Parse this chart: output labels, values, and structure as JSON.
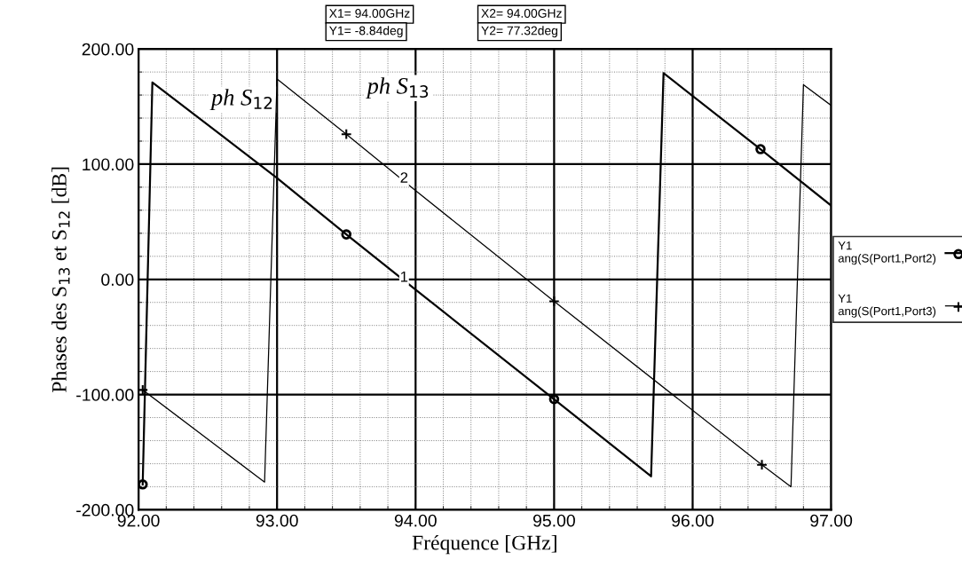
{
  "chart_data": {
    "type": "line",
    "xlabel": "Fréquence [GHz]",
    "ylabel": "Phases des S$_{13}$ et S$_{12}$ [dB]",
    "series": [
      {
        "name": "Y1\nang(S(Port1,Port2)",
        "color": "#000000",
        "x": [
          92.03,
          92.1,
          93.0,
          93.5,
          94.0,
          95.0,
          95.7,
          95.79,
          96.49,
          97.0
        ],
        "values": [
          -178,
          171,
          88,
          39,
          -9,
          -104,
          -171,
          179,
          113,
          64
        ]
      },
      {
        "type": "scatter",
        "marker": "circle",
        "color": "#000000",
        "x": [
          92.03,
          93.5,
          95.0,
          96.49
        ],
        "values": [
          -178,
          39,
          -104,
          113
        ]
      },
      {
        "name": "Y1\nang(S(Port1,Port3)",
        "color": "#000000",
        "x": [
          92.03,
          92.91,
          93.0,
          93.5,
          94.0,
          95.0,
          96.5,
          96.71,
          96.8,
          97.0
        ],
        "values": [
          -96,
          -176,
          174,
          126,
          77,
          -19,
          -161,
          -180,
          169,
          151
        ]
      },
      {
        "type": "scatter",
        "marker": "cross",
        "color": "#000000",
        "x": [
          92.03,
          93.5,
          95.0,
          96.5
        ],
        "values": [
          -96,
          126,
          -19,
          -161
        ]
      }
    ],
    "xlim": [
      92,
      97
    ],
    "ylim": [
      -200,
      200
    ],
    "xticks": [
      {
        "value": 92,
        "label": "92.00"
      },
      {
        "value": 93,
        "label": "93.00"
      },
      {
        "value": 94,
        "label": "94.00"
      },
      {
        "value": 95,
        "label": "95.00"
      },
      {
        "value": 96,
        "label": "96.00"
      },
      {
        "value": 97,
        "label": "97.00"
      }
    ],
    "yticks": [
      {
        "value": -200,
        "label": "-200.00"
      },
      {
        "value": -100,
        "label": "-100.00"
      },
      {
        "value": 0,
        "label": "0.00"
      },
      {
        "value": 100,
        "label": "100.00"
      },
      {
        "value": 200,
        "label": "200.00"
      }
    ],
    "grid": true,
    "legend": "right",
    "annotations": [
      "ph S$_{12}$",
      "ph S$_{13}$",
      {
        "text": "1",
        "x": 94.0,
        "y": -9
      },
      {
        "text": "2",
        "x": 94.0,
        "y": 77
      },
      "X1= 94.00GHz",
      "Y1= -8.84deg",
      "X2= 94.00GHz",
      "Y2= 77.32deg"
    ]
  }
}
